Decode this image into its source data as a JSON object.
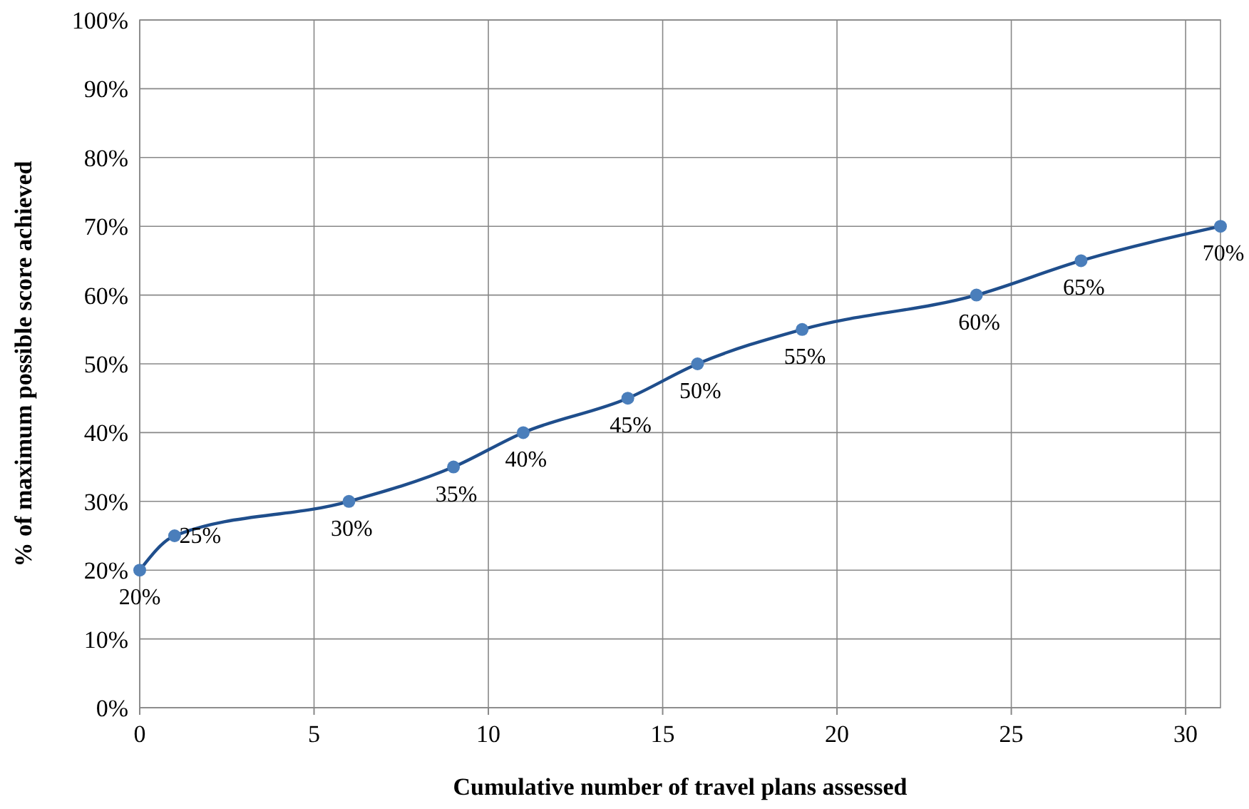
{
  "chart_data": {
    "type": "line",
    "xlabel": "Cumulative number of travel plans assessed",
    "ylabel": "% of maximum possible score achieved",
    "x": [
      0,
      1,
      6,
      9,
      11,
      14,
      16,
      19,
      24,
      27,
      31
    ],
    "series": [
      {
        "color": "#1f4e8c",
        "values": [
          20,
          25,
          30,
          35,
          40,
          45,
          50,
          55,
          60,
          65,
          70
        ],
        "value_labels": [
          "20%",
          "25%",
          "30%",
          "35%",
          "40%",
          "45%",
          "50%",
          "55%",
          "60%",
          "65%",
          "70%"
        ]
      }
    ],
    "xlim": [
      0,
      31
    ],
    "xticks": [
      0,
      5,
      10,
      15,
      20,
      25,
      30
    ],
    "ylim": [
      0,
      100
    ],
    "yticks": [
      {
        "value": 0,
        "label": "0%"
      },
      {
        "value": 10,
        "label": "10%"
      },
      {
        "value": 20,
        "label": "20%"
      },
      {
        "value": 30,
        "label": "30%"
      },
      {
        "value": 40,
        "label": "40%"
      },
      {
        "value": 50,
        "label": "50%"
      },
      {
        "value": 60,
        "label": "60%"
      },
      {
        "value": 70,
        "label": "70%"
      },
      {
        "value": 80,
        "label": "80%"
      },
      {
        "value": 90,
        "label": "90%"
      },
      {
        "value": 100,
        "label": "100%"
      }
    ],
    "grid": true,
    "marker": "circle",
    "line_style": "solid"
  }
}
